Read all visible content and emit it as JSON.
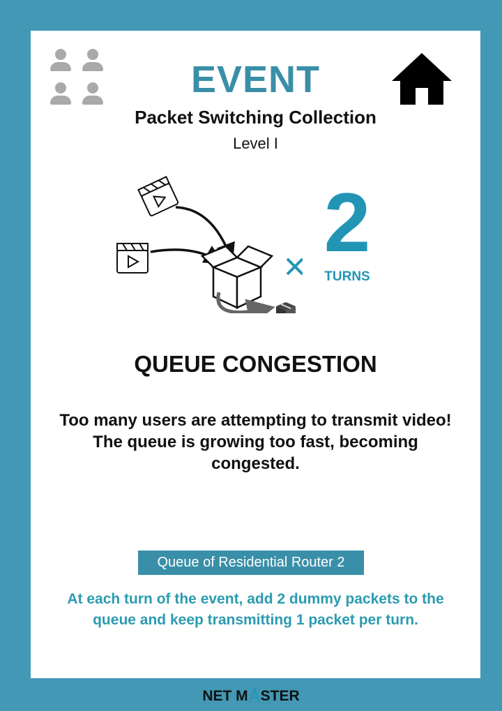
{
  "card": {
    "title": "EVENT",
    "collection": "Packet Switching Collection",
    "level": "Level I",
    "turns": {
      "multiplier": "×",
      "count": "2",
      "label": "TURNS"
    },
    "event_name": "QUEUE CONGESTION",
    "description": "Too many users are attempting to transmit video! The queue is growing too fast, becoming congested.",
    "target": "Queue of Residential Router 2",
    "instruction": "At each turn of the event, add 2 dummy packets to the queue and keep transmitting 1 packet per turn."
  },
  "icons": {
    "players": "players-icon",
    "home": "home-icon",
    "video": "video-clapperboard-icon",
    "box": "open-box-icon",
    "packet": "small-packet-icon"
  },
  "brand": {
    "text_left": "NET M",
    "text_right": "STER"
  },
  "colors": {
    "frame": "#4298b5",
    "title": "#3a8fa8",
    "accent": "#2295b5",
    "instruction": "#2b9bb0",
    "tag_bg": "#3a8fa8"
  }
}
